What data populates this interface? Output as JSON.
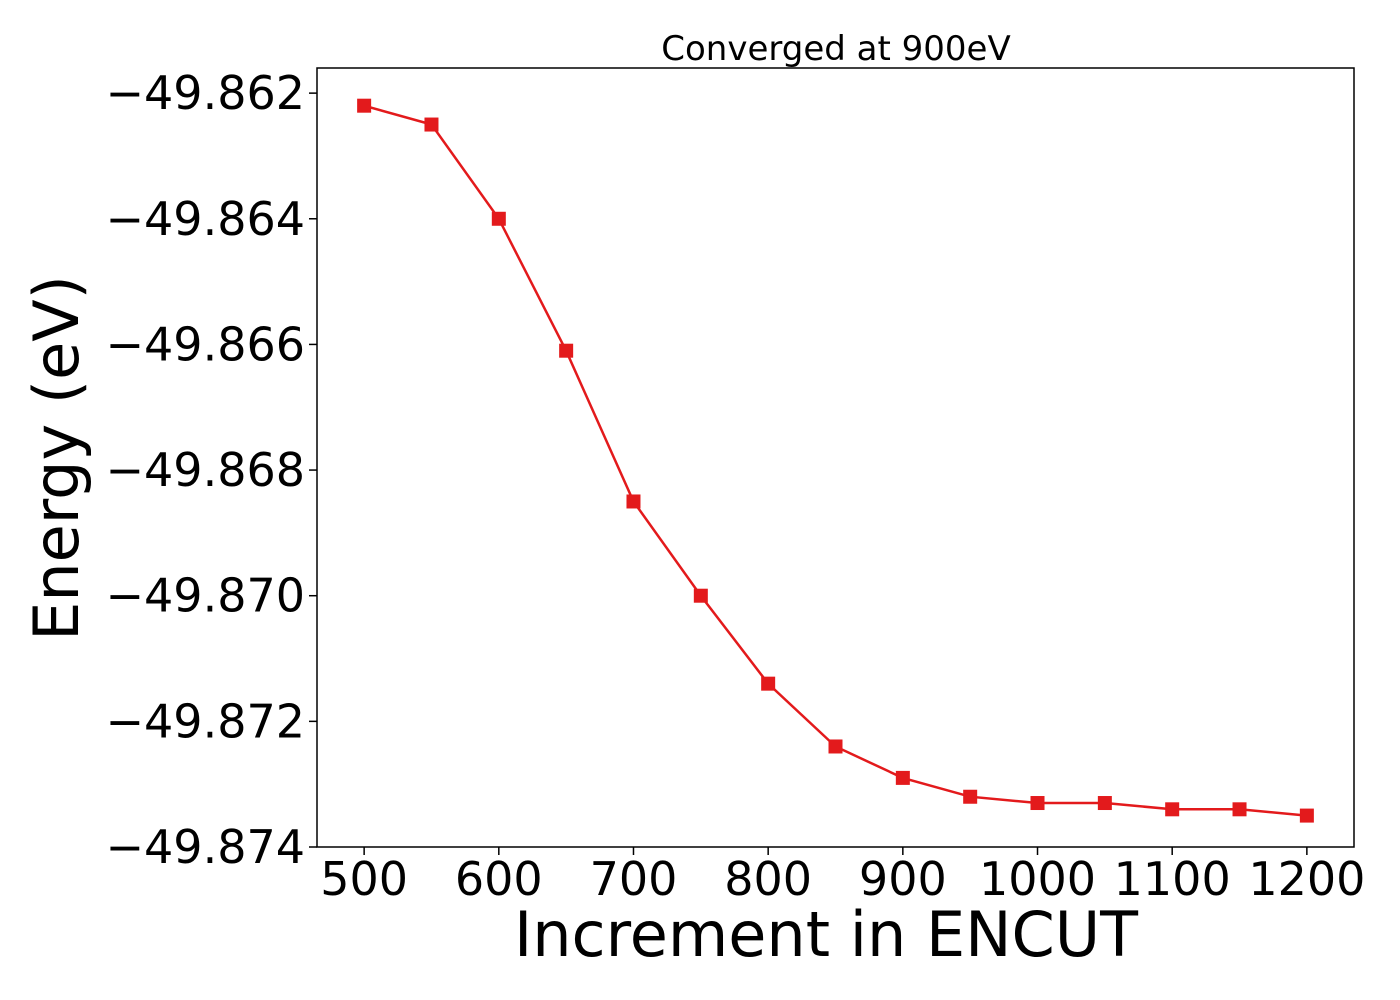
{
  "chart_data": {
    "type": "line",
    "title": "Converged at 900eV",
    "xlabel": "Increment in ENCUT",
    "ylabel": "Energy (eV)",
    "xlim": [
      465,
      1235
    ],
    "ylim": [
      -49.874,
      -49.8616
    ],
    "xticks": [
      500,
      600,
      700,
      800,
      900,
      1000,
      1100,
      1200
    ],
    "xtick_labels": [
      "500",
      "600",
      "700",
      "800",
      "900",
      "1000",
      "1100",
      "1200"
    ],
    "yticks": [
      -49.862,
      -49.864,
      -49.866,
      -49.868,
      -49.87,
      -49.872,
      -49.874
    ],
    "ytick_labels": [
      "−49.862",
      "−49.864",
      "−49.866",
      "−49.868",
      "−49.870",
      "−49.872",
      "−49.874"
    ],
    "grid": false,
    "legend": "none",
    "series": [
      {
        "color": "#e31a1c",
        "marker": "square",
        "x": [
          500,
          550,
          600,
          650,
          700,
          750,
          800,
          850,
          900,
          950,
          1000,
          1050,
          1100,
          1150,
          1200
        ],
        "y": [
          -49.8622,
          -49.8625,
          -49.864,
          -49.8661,
          -49.8685,
          -49.87,
          -49.8714,
          -49.8724,
          -49.8729,
          -49.8732,
          -49.8733,
          -49.8733,
          -49.8734,
          -49.8734,
          -49.8735
        ]
      }
    ]
  }
}
